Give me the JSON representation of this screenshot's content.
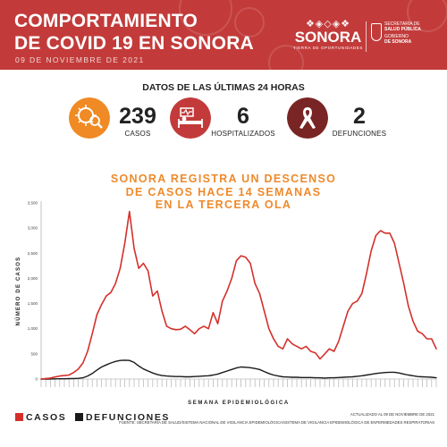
{
  "header": {
    "title": "COMPORTAMIENTO\nDE COVID 19 EN SONORA",
    "date": "09 DE NOVIEMBRE DE 2021",
    "logo_glyphs": "❖◈◇◈❖",
    "logo_word": "SONORA",
    "logo_tagline": "TIERRA DE OPORTUNIDADES",
    "gov_line1": "SECRETARÍA DE",
    "gov_line2": "SALUD PÚBLICA",
    "gov_line3": "GOBIERNO",
    "gov_line4": "DE SONORA"
  },
  "summary": {
    "subtitle": "DATOS DE LAS ÚLTIMAS 24 HORAS",
    "stats": [
      {
        "value": "239",
        "label": "CASOS",
        "icon": "virus-magnifier-icon",
        "color": "#f08a24"
      },
      {
        "value": "6",
        "label": "HOSPITALIZADOS",
        "icon": "hospital-bed-icon",
        "color": "#c23b3a"
      },
      {
        "value": "2",
        "label": "DEFUNCIONES",
        "icon": "awareness-ribbon-icon",
        "color": "#7a2525"
      }
    ]
  },
  "colors": {
    "header": "#c23b3a",
    "casos": "#d4302b",
    "defunciones": "#1a1a1a",
    "accent": "#ee8a2c"
  },
  "chart_data": {
    "type": "line",
    "title": "SONORA REGISTRA UN DESCENSO\nDE CASOS HACE 14 SEMANAS\nEN LA TERCERA OLA",
    "xlabel": "SEMANA EPIDEMIOLÓGICA",
    "ylabel": "NÚMERO DE CASOS",
    "ylim": [
      0,
      3500
    ],
    "yticks": [
      "0",
      "500",
      "1,000",
      "1,500",
      "2,000",
      "2,500",
      "3,000",
      "3,500"
    ],
    "x_tick_labels_legible": false,
    "grid": false,
    "legend_position": "bottom-left",
    "series": [
      {
        "name": "CASOS",
        "color": "#d4302b",
        "values": [
          0,
          10,
          20,
          40,
          60,
          70,
          80,
          130,
          200,
          320,
          550,
          900,
          1280,
          1480,
          1650,
          1720,
          1900,
          2200,
          2700,
          3330,
          2600,
          2200,
          2300,
          2150,
          1650,
          1750,
          1350,
          1050,
          1000,
          980,
          990,
          1050,
          980,
          900,
          1000,
          1050,
          1000,
          1320,
          1100,
          1550,
          1750,
          2000,
          2350,
          2450,
          2420,
          2300,
          1900,
          1700,
          1350,
          1000,
          800,
          650,
          600,
          800,
          700,
          650,
          600,
          650,
          550,
          520,
          400,
          500,
          600,
          550,
          750,
          1050,
          1350,
          1500,
          1550,
          1700,
          2100,
          2550,
          2850,
          2950,
          2900,
          2900,
          2700,
          2300,
          1900,
          1450,
          1150,
          950,
          900,
          800,
          800,
          600
        ]
      },
      {
        "name": "DEFUNCIONES",
        "color": "#1a1a1a",
        "values": [
          0,
          0,
          2,
          3,
          5,
          5,
          8,
          10,
          15,
          25,
          60,
          110,
          180,
          240,
          280,
          320,
          350,
          370,
          375,
          370,
          330,
          260,
          200,
          160,
          120,
          90,
          70,
          60,
          55,
          50,
          50,
          45,
          45,
          50,
          55,
          60,
          65,
          80,
          100,
          130,
          160,
          190,
          220,
          240,
          235,
          225,
          210,
          190,
          150,
          110,
          80,
          60,
          45,
          40,
          35,
          35,
          30,
          30,
          30,
          25,
          25,
          20,
          25,
          25,
          30,
          35,
          40,
          45,
          55,
          65,
          80,
          95,
          110,
          120,
          130,
          135,
          135,
          120,
          100,
          80,
          65,
          50,
          45,
          40,
          35,
          25
        ]
      }
    ]
  },
  "legend": {
    "casos": "CASOS",
    "defunciones": "DEFUNCIONES"
  },
  "footnote": {
    "line1": "ACTUALIZADO AL 09 DE NOVIEMBRE DE 2021",
    "line2": "FUENTE: SECRETARÍA DE SALUD/SISTEMA NACIONAL DE VIGILANCIA EPIDEMIOLÓGICA/SISTEMA DE VIGILANCIA EPIDEMIOLÓGICA DE ENFERMEDADES RESPIRATORIAS"
  }
}
